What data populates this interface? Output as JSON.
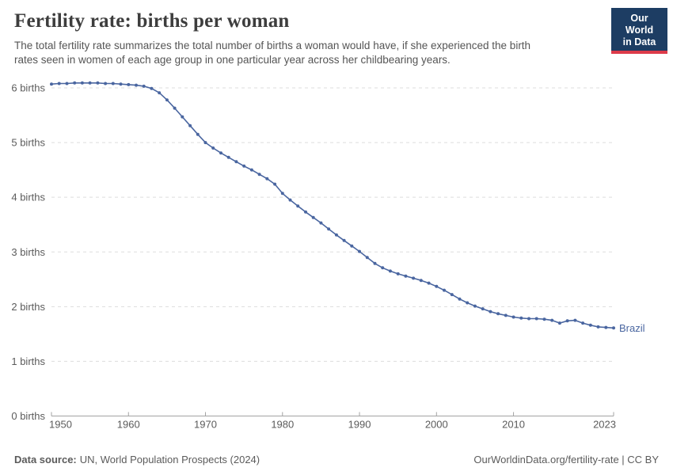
{
  "header": {
    "title": "Fertility rate: births per woman",
    "subtitle_lines": [
      "The total fertility rate summarizes the total number of births a woman would have, if she experienced the birth",
      "rates seen in women of each age group in one particular year across her childbearing years."
    ],
    "logo": {
      "line1": "Our World",
      "line2": "in Data",
      "bg": "#1d3d63",
      "stripe": "#dd3b4a"
    }
  },
  "chart_data": {
    "type": "line",
    "title": "Fertility rate: births per woman",
    "xlabel": "",
    "ylabel": "births",
    "xlim": [
      1950,
      2023
    ],
    "ylim": [
      0,
      6.3
    ],
    "x_ticks": [
      1950,
      1960,
      1970,
      1980,
      1990,
      2000,
      2010,
      2023
    ],
    "y_ticks": [
      0,
      1,
      2,
      3,
      4,
      5,
      6
    ],
    "y_tick_format": "{v} births",
    "grid": "horizontal-dashed",
    "grid_color": "#dddddd",
    "axis_color": "#a3a3a3",
    "tick_label_color": "#5b5b5b",
    "legend_position": "end-of-line-label",
    "series": [
      {
        "name": "Brazil",
        "color": "#4a66a0",
        "x": [
          1950,
          1951,
          1952,
          1953,
          1954,
          1955,
          1956,
          1957,
          1958,
          1959,
          1960,
          1961,
          1962,
          1963,
          1964,
          1965,
          1966,
          1967,
          1968,
          1969,
          1970,
          1971,
          1972,
          1973,
          1974,
          1975,
          1976,
          1977,
          1978,
          1979,
          1980,
          1981,
          1982,
          1983,
          1984,
          1985,
          1986,
          1987,
          1988,
          1989,
          1990,
          1991,
          1992,
          1993,
          1994,
          1995,
          1996,
          1997,
          1998,
          1999,
          2000,
          2001,
          2002,
          2003,
          2004,
          2005,
          2006,
          2007,
          2008,
          2009,
          2010,
          2011,
          2012,
          2013,
          2014,
          2015,
          2016,
          2017,
          2018,
          2019,
          2020,
          2021,
          2022,
          2023
        ],
        "values": [
          6.07,
          6.08,
          6.08,
          6.09,
          6.09,
          6.09,
          6.09,
          6.08,
          6.08,
          6.07,
          6.06,
          6.05,
          6.03,
          5.99,
          5.91,
          5.78,
          5.63,
          5.47,
          5.31,
          5.15,
          5.0,
          4.9,
          4.81,
          4.73,
          4.65,
          4.57,
          4.5,
          4.42,
          4.34,
          4.24,
          4.07,
          3.95,
          3.84,
          3.73,
          3.63,
          3.53,
          3.42,
          3.31,
          3.21,
          3.11,
          3.01,
          2.9,
          2.79,
          2.71,
          2.65,
          2.6,
          2.56,
          2.52,
          2.48,
          2.43,
          2.37,
          2.3,
          2.22,
          2.14,
          2.07,
          2.01,
          1.96,
          1.91,
          1.87,
          1.84,
          1.81,
          1.79,
          1.78,
          1.78,
          1.77,
          1.75,
          1.7,
          1.74,
          1.75,
          1.7,
          1.66,
          1.63,
          1.62,
          1.61
        ]
      }
    ],
    "end_label": "Brazil"
  },
  "footer": {
    "source_label": "Data source:",
    "source_value": "UN, World Population Prospects (2024)",
    "credit": "OurWorldinData.org/fertility-rate | CC BY"
  }
}
